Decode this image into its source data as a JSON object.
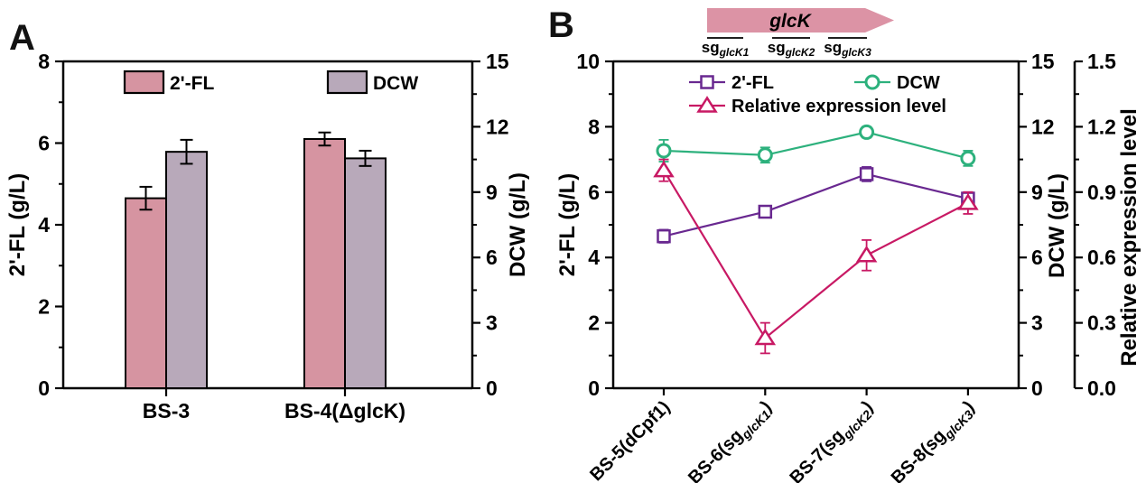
{
  "figure": {
    "panel_a_label": "A",
    "panel_b_label": "B"
  },
  "colors": {
    "fl_pink": "#D694A1",
    "dcw_mauve": "#B8A9BA",
    "purple": "#692890",
    "green": "#2DB17D",
    "magenta": "#C81964",
    "arrow_pink": "#DC93A5",
    "axis": "#000000"
  },
  "chart_data": [
    {
      "panel": "A",
      "type": "bar",
      "title": "",
      "categories": [
        "BS-3",
        "BS-4(ΔglcK)"
      ],
      "series": [
        {
          "name": "2'-FL",
          "axis": "left",
          "color_key": "fl_pink",
          "values": [
            4.65,
            6.1
          ],
          "errors": [
            0.28,
            0.16
          ]
        },
        {
          "name": "DCW",
          "axis": "right",
          "color_key": "dcw_mauve",
          "values": [
            10.85,
            10.55
          ],
          "errors": [
            0.55,
            0.35
          ]
        }
      ],
      "axes": {
        "left": {
          "label": "2'-FL (g/L)",
          "min": 0,
          "max": 8,
          "major_ticks": [
            0,
            2,
            4,
            6,
            8
          ]
        },
        "right": {
          "label": "DCW (g/L)",
          "min": 0,
          "max": 15,
          "major_ticks": [
            0,
            3,
            6,
            9,
            12,
            15
          ]
        }
      },
      "legend": [
        "2'-FL",
        "DCW"
      ],
      "grid": false
    },
    {
      "panel": "B",
      "type": "line",
      "title": "",
      "categories": [
        {
          "parts": [
            {
              "t": "BS-5(dCpf1)"
            }
          ]
        },
        {
          "parts": [
            {
              "t": "BS-6(sg"
            },
            {
              "t": "glcK1",
              "sub": true
            },
            {
              "t": ")"
            }
          ]
        },
        {
          "parts": [
            {
              "t": "BS-7(sg"
            },
            {
              "t": "glcK2",
              "sub": true
            },
            {
              "t": ")"
            }
          ]
        },
        {
          "parts": [
            {
              "t": "BS-8(sg"
            },
            {
              "t": "glcK3",
              "sub": true
            },
            {
              "t": ")"
            }
          ]
        }
      ],
      "series": [
        {
          "name": "2'-FL",
          "axis": "left",
          "color_key": "purple",
          "marker": "square",
          "values": [
            4.65,
            5.4,
            6.55,
            5.8
          ],
          "errors": [
            0.2,
            0.18,
            0.22,
            0.2
          ]
        },
        {
          "name": "DCW",
          "axis": "right",
          "color_key": "green",
          "marker": "circle",
          "values": [
            10.9,
            10.7,
            11.75,
            10.55
          ],
          "errors": [
            0.5,
            0.35,
            0.25,
            0.35
          ]
        },
        {
          "name": "Relative  expression level",
          "axis": "far_right",
          "color_key": "magenta",
          "marker": "triangle",
          "values": [
            1.0,
            0.23,
            0.61,
            0.85
          ],
          "errors": [
            0.05,
            0.07,
            0.07,
            0.05
          ]
        }
      ],
      "axes": {
        "left": {
          "label": "2'-FL (g/L)",
          "min": 0,
          "max": 10,
          "major_ticks": [
            0,
            2,
            4,
            6,
            8,
            10
          ]
        },
        "right": {
          "label": "DCW (g/L)",
          "min": 0,
          "max": 15,
          "major_ticks": [
            0,
            3,
            6,
            9,
            12,
            15
          ]
        },
        "far_right": {
          "label": "Relative  expression level",
          "min": 0,
          "max": 1.5,
          "major_ticks": [
            "0.0",
            "0.3",
            "0.6",
            "0.9",
            "1.2",
            "1.5"
          ]
        }
      },
      "legend": [
        "2'-FL",
        "DCW",
        "Relative  expression level"
      ],
      "grid": false,
      "gene_annotation": {
        "arrow_label": "glcK",
        "sg_labels": [
          {
            "base": "sg",
            "sub": "glcK1"
          },
          {
            "base": "sg",
            "sub": "glcK2"
          },
          {
            "base": "sg",
            "sub": "glcK3"
          }
        ]
      }
    }
  ]
}
